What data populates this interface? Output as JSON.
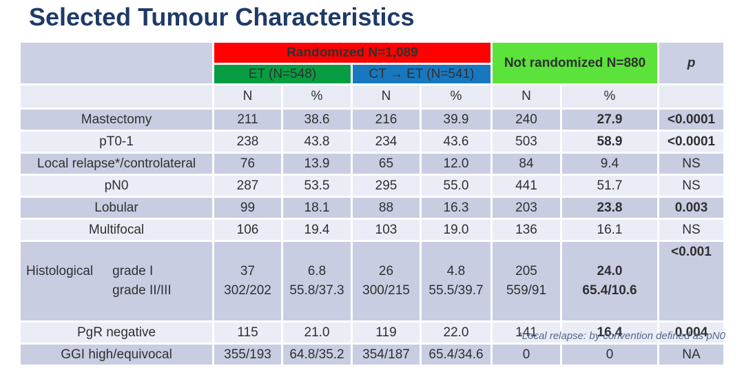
{
  "title": "Selected Tumour Characteristics",
  "header": {
    "randomized": "Randomized N=1,089",
    "et_arm": "ET (N=548)",
    "ct_arm": "CT → ET (N=541)",
    "not_randomized": "Not randomized N=880",
    "p_label": "p",
    "n_label": "N",
    "pct_label": "%"
  },
  "rows": [
    {
      "label": "Mastectomy",
      "et_n": "211",
      "et_pct": "38.6",
      "ct_n": "216",
      "ct_pct": "39.9",
      "nr_n": "240",
      "nr_pct": "27.9",
      "p": "<0.0001",
      "significant": true
    },
    {
      "label": "pT0-1",
      "et_n": "238",
      "et_pct": "43.8",
      "ct_n": "234",
      "ct_pct": "43.6",
      "nr_n": "503",
      "nr_pct": "58.9",
      "p": "<0.0001",
      "significant": true
    },
    {
      "label": "Local relapse*/controlateral",
      "et_n": "76",
      "et_pct": "13.9",
      "ct_n": "65",
      "ct_pct": "12.0",
      "nr_n": "84",
      "nr_pct": "9.4",
      "p": "NS",
      "significant": false
    },
    {
      "label": "pN0",
      "et_n": "287",
      "et_pct": "53.5",
      "ct_n": "295",
      "ct_pct": "55.0",
      "nr_n": "441",
      "nr_pct": "51.7",
      "p": "NS",
      "significant": false
    },
    {
      "label": "Lobular",
      "et_n": "99",
      "et_pct": "18.1",
      "ct_n": "88",
      "ct_pct": "16.3",
      "nr_n": "203",
      "nr_pct": "23.8",
      "p": "0.003",
      "significant": true
    },
    {
      "label": "Multifocal",
      "et_n": "106",
      "et_pct": "19.4",
      "ct_n": "103",
      "ct_pct": "19.0",
      "nr_n": "136",
      "nr_pct": "16.1",
      "p": "NS",
      "significant": false
    },
    {
      "label": "Histological",
      "label2": "grade I\ngrade II/III",
      "et_n": "37\n302/202",
      "et_pct": "6.8\n55.8/37.3",
      "ct_n": "26\n300/215",
      "ct_pct": "4.8\n55.5/39.7",
      "nr_n": "205\n559/91",
      "nr_pct": "24.0\n65.4/10.6",
      "p": "<0.001",
      "significant": true
    },
    {
      "label": "PgR negative",
      "et_n": "115",
      "et_pct": "21.0",
      "ct_n": "119",
      "ct_pct": "22.0",
      "nr_n": "141",
      "nr_pct": "16.4",
      "p": "0.004",
      "significant": true
    },
    {
      "label": "GGI high/equivocal",
      "et_n": "355/193",
      "et_pct": "64.8/35.2",
      "ct_n": "354/187",
      "ct_pct": "65.4/34.6",
      "nr_n": "0",
      "nr_pct": "0",
      "p": "NA",
      "significant": false
    }
  ],
  "footnote": "*Local relapse: by convention defined as pN0",
  "colors": {
    "title_navy": "#1E3A68",
    "randomized_red": "#FE0000",
    "et_green": "#089D42",
    "ct_blue": "#1878BF",
    "not_randomized_lime": "#5BE33B",
    "header_lavender": "#CBD0E4",
    "row_dark": "#C8CDE2",
    "row_light": "#EAECF6",
    "footnote_slate": "#50678B"
  }
}
